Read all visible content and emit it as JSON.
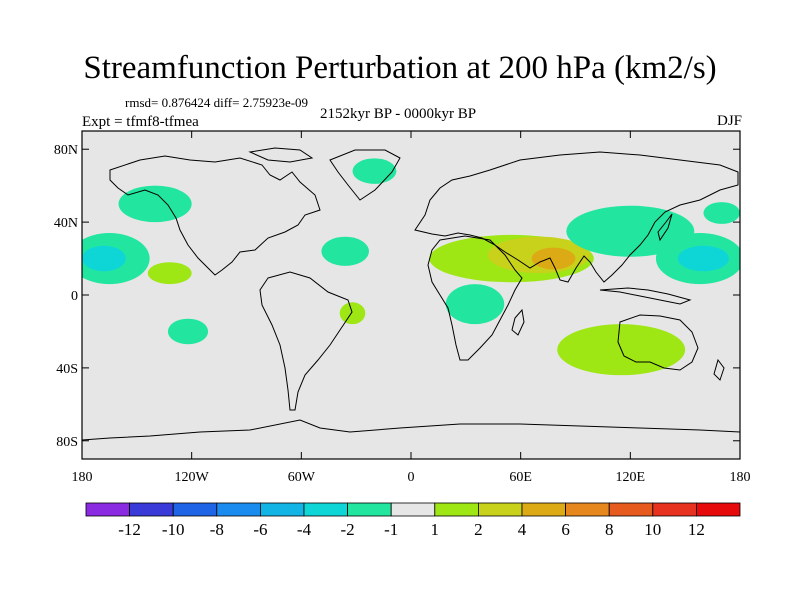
{
  "chart_data": {
    "type": "map",
    "title": "Streamfunction Perturbation at 200 hPa (km2/s)",
    "stats": "rmsd= 0.876424 diff= 2.75923e-09",
    "experiment": "Expt = tfmf8-tfmea",
    "period": "2152kyr BP - 0000kyr BP",
    "season": "DJF",
    "projection": "cylindrical equidistant",
    "lon_range": [
      -180,
      180
    ],
    "lat_range": [
      -90,
      90
    ],
    "lat_ticks": [
      {
        "value": 80,
        "label": "80N"
      },
      {
        "value": 40,
        "label": "40N"
      },
      {
        "value": 0,
        "label": "0"
      },
      {
        "value": -40,
        "label": "40S"
      },
      {
        "value": -80,
        "label": "80S"
      }
    ],
    "lon_ticks": [
      {
        "value": -180,
        "label": "180"
      },
      {
        "value": -120,
        "label": "120W"
      },
      {
        "value": -60,
        "label": "60W"
      },
      {
        "value": 0,
        "label": "0"
      },
      {
        "value": 60,
        "label": "60E"
      },
      {
        "value": 120,
        "label": "120E"
      },
      {
        "value": 180,
        "label": "180"
      }
    ],
    "colorbar": {
      "levels": [
        "-12",
        "-10",
        "-8",
        "-6",
        "-4",
        "-2",
        "-1",
        "1",
        "2",
        "4",
        "6",
        "8",
        "10",
        "12"
      ],
      "colors": [
        "#8a2be2",
        "#3a3ad8",
        "#1e64e6",
        "#1a8cf0",
        "#12b4e6",
        "#0fd6d6",
        "#22e6a0",
        "#e6e6e6",
        "#9ee614",
        "#c8d21a",
        "#dcaa14",
        "#e6871e",
        "#e65a1e",
        "#e6321e",
        "#e60a0a"
      ]
    },
    "anomaly_regions": [
      {
        "name": "north-pacific",
        "sign": "negative",
        "level": "-1",
        "lon": -140,
        "lat": 50,
        "rlon": 20,
        "rlat": 10
      },
      {
        "name": "central-pacific-west",
        "sign": "negative",
        "level": "-1",
        "lon": -165,
        "lat": 20,
        "rlon": 22,
        "rlat": 14
      },
      {
        "name": "central-pacific-west-core",
        "sign": "negative",
        "level": "-2",
        "lon": -168,
        "lat": 20,
        "rlon": 12,
        "rlat": 7
      },
      {
        "name": "tropical-pacific",
        "sign": "positive",
        "level": "1",
        "lon": -132,
        "lat": 12,
        "rlon": 12,
        "rlat": 6
      },
      {
        "name": "south-pacific",
        "sign": "negative",
        "level": "-1",
        "lon": -122,
        "lat": -20,
        "rlon": 11,
        "rlat": 7
      },
      {
        "name": "tropical-atlantic",
        "sign": "negative",
        "level": "-1",
        "lon": -36,
        "lat": 24,
        "rlon": 13,
        "rlat": 8
      },
      {
        "name": "greenland",
        "sign": "negative",
        "level": "-1",
        "lon": -20,
        "lat": 68,
        "rlon": 12,
        "rlat": 7
      },
      {
        "name": "south-atlantic",
        "sign": "positive",
        "level": "1",
        "lon": -32,
        "lat": -10,
        "rlon": 7,
        "rlat": 6
      },
      {
        "name": "africa-asia-band",
        "sign": "positive",
        "level": "1",
        "lon": 55,
        "lat": 20,
        "rlon": 45,
        "rlat": 13
      },
      {
        "name": "arabia-india",
        "sign": "positive",
        "level": "2",
        "lon": 70,
        "lat": 22,
        "rlon": 28,
        "rlat": 10
      },
      {
        "name": "india-core",
        "sign": "positive",
        "level": "4",
        "lon": 78,
        "lat": 20,
        "rlon": 12,
        "rlat": 6
      },
      {
        "name": "east-africa",
        "sign": "negative",
        "level": "-1",
        "lon": 35,
        "lat": -5,
        "rlon": 16,
        "rlat": 11
      },
      {
        "name": "eurasia-north-pacific",
        "sign": "negative",
        "level": "-1",
        "lon": 120,
        "lat": 35,
        "rlon": 35,
        "rlat": 14
      },
      {
        "name": "western-pacific",
        "sign": "negative",
        "level": "-1",
        "lon": 158,
        "lat": 20,
        "rlon": 24,
        "rlat": 14
      },
      {
        "name": "western-pacific-core",
        "sign": "negative",
        "level": "-2",
        "lon": 160,
        "lat": 20,
        "rlon": 14,
        "rlat": 7
      },
      {
        "name": "australia",
        "sign": "positive",
        "level": "1",
        "lon": 115,
        "lat": -30,
        "rlon": 35,
        "rlat": 14
      },
      {
        "name": "north-pacific-dateline",
        "sign": "negative",
        "level": "-1",
        "lon": 170,
        "lat": 45,
        "rlon": 10,
        "rlat": 6
      }
    ]
  }
}
